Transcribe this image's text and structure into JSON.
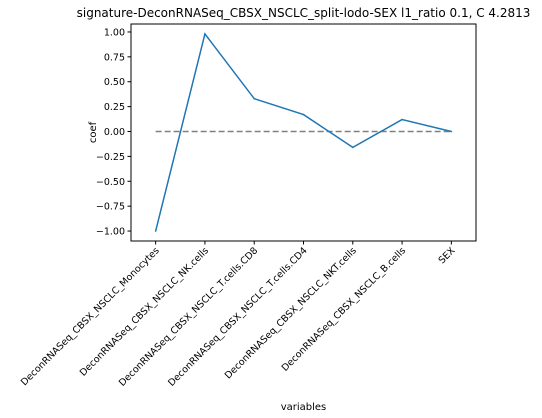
{
  "chart_data": {
    "type": "line",
    "title": "signature-DeconRNASeq_CBSX_NSCLC_split-lodo-SEX l1_ratio 0.1, C 4.2813",
    "xlabel": "variables",
    "ylabel": "coef",
    "categories": [
      "DeconRNASeq_CBSX_NSCLC_Monocytes",
      "DeconRNASeq_CBSX_NSCLC_NK.cells",
      "DeconRNASeq_CBSX_NSCLC_T.cells.CD8",
      "DeconRNASeq_CBSX_NSCLC_T.cells.CD4",
      "DeconRNASeq_CBSX_NSCLC_NKT.cells",
      "DeconRNASeq_CBSX_NSCLC_B.cells",
      "SEX"
    ],
    "series": [
      {
        "values": [
          -1.0,
          0.98,
          0.33,
          0.17,
          -0.16,
          0.12,
          0.0
        ],
        "color": "#1f77b4"
      }
    ],
    "reference_line": {
      "y": 0.0,
      "style": "dashed",
      "color": "#808080"
    },
    "ylim": [
      -1.1,
      1.08
    ],
    "yticks": [
      -1.0,
      -0.75,
      -0.5,
      -0.25,
      0.0,
      0.25,
      0.5,
      0.75,
      1.0
    ],
    "ytick_labels": [
      "−1.00",
      "−0.75",
      "−0.50",
      "−0.25",
      "0.00",
      "0.25",
      "0.50",
      "0.75",
      "1.00"
    ],
    "grid": false
  }
}
